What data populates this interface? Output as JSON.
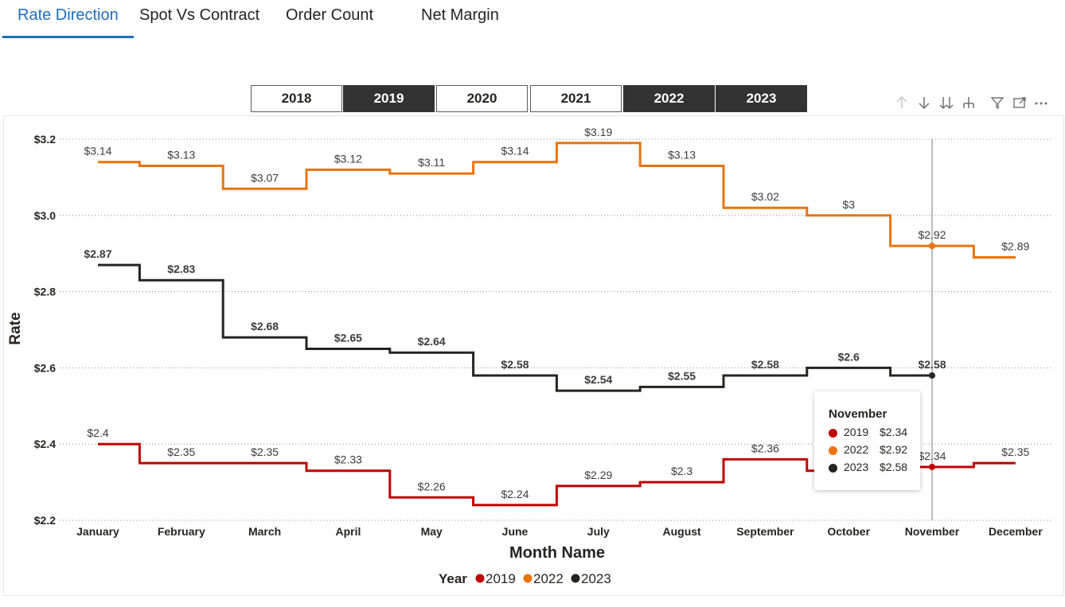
{
  "tabs": [
    {
      "label": "Rate Direction",
      "active": true
    },
    {
      "label": "Spot Vs Contract",
      "active": false
    },
    {
      "label": "Order Count",
      "active": false
    },
    {
      "label": "Net Margin",
      "active": false
    }
  ],
  "slicer": {
    "options": [
      {
        "label": "2018",
        "selected": false
      },
      {
        "label": "2019",
        "selected": true
      },
      {
        "label": "2020",
        "selected": false
      },
      {
        "label": "2021",
        "selected": false
      },
      {
        "label": "2022",
        "selected": true
      },
      {
        "label": "2023",
        "selected": true
      }
    ]
  },
  "visual_header_icons": [
    "arrow-up-icon",
    "arrow-down-icon",
    "double-arrow-down-icon",
    "hierarchy-expand-icon",
    "filter-icon",
    "focus-mode-icon",
    "more-options-icon"
  ],
  "chart_data": {
    "type": "line",
    "line_shape": "step",
    "title": "",
    "xlabel": "Month Name",
    "ylabel": "Rate",
    "ylim": [
      2.2,
      3.2
    ],
    "yticks": [
      "$2.2",
      "$2.4",
      "$2.6",
      "$2.8",
      "$3.0",
      "$3.2"
    ],
    "ytick_values": [
      2.2,
      2.4,
      2.6,
      2.8,
      3.0,
      3.2
    ],
    "grid": "horizontal-dotted",
    "categories": [
      "January",
      "February",
      "March",
      "April",
      "May",
      "June",
      "July",
      "August",
      "September",
      "October",
      "November",
      "December"
    ],
    "legend": {
      "title": "Year",
      "placement": "bottom-center"
    },
    "series": [
      {
        "name": "2019",
        "color": "#c00000",
        "values": [
          2.4,
          2.35,
          2.35,
          2.33,
          2.26,
          2.24,
          2.29,
          2.3,
          2.36,
          2.33,
          2.34,
          2.35
        ],
        "labels": [
          "$2.4",
          "$2.35",
          "$2.35",
          "$2.33",
          "$2.26",
          "$2.24",
          "$2.29",
          "$2.3",
          "$2.36",
          "",
          "$2.34",
          "$2.35"
        ],
        "label_bold": false
      },
      {
        "name": "2022",
        "color": "#e8740c",
        "values": [
          3.14,
          3.13,
          3.07,
          3.12,
          3.11,
          3.14,
          3.19,
          3.13,
          3.02,
          3.0,
          2.92,
          2.89
        ],
        "labels": [
          "$3.14",
          "$3.13",
          "$3.07",
          "$3.12",
          "$3.11",
          "$3.14",
          "$3.19",
          "$3.13",
          "$3.02",
          "$3",
          "$2.92",
          "$2.89"
        ],
        "label_bold": false
      },
      {
        "name": "2023",
        "color": "#252423",
        "values": [
          2.87,
          2.83,
          2.68,
          2.65,
          2.64,
          2.58,
          2.54,
          2.55,
          2.58,
          2.6,
          2.58,
          null
        ],
        "labels": [
          "$2.87",
          "$2.83",
          "$2.68",
          "$2.65",
          "$2.64",
          "$2.58",
          "$2.54",
          "$2.55",
          "$2.58",
          "$2.6",
          "$2.58",
          ""
        ],
        "label_bold": true
      }
    ],
    "hover": {
      "category": "November",
      "rows": [
        {
          "year": "2019",
          "value": "$2.34",
          "color": "#c00000"
        },
        {
          "year": "2022",
          "value": "$2.92",
          "color": "#e8740c"
        },
        {
          "year": "2023",
          "value": "$2.58",
          "color": "#252423"
        }
      ]
    }
  }
}
